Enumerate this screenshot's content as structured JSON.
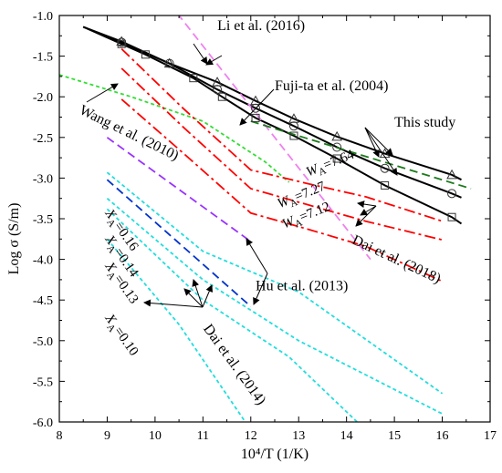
{
  "chart_data": {
    "type": "line",
    "xlabel": "10⁴/T (1/K)",
    "ylabel": "Log σ (S/m)",
    "xlim": [
      8,
      17
    ],
    "ylim": [
      -6.0,
      -1.0
    ],
    "xticks": [
      8,
      9,
      10,
      11,
      12,
      13,
      14,
      15,
      16,
      17
    ],
    "yticks": [
      -1.0,
      -1.5,
      -2.0,
      -2.5,
      -3.0,
      -3.5,
      -4.0,
      -4.5,
      -5.0,
      -5.5,
      -6.0
    ],
    "ytick_labels": [
      "-1.0",
      "-1.5",
      "-2.0",
      "-2.5",
      "-3.0",
      "-3.5",
      "-4.0",
      "-4.5",
      "-5.0",
      "-5.5",
      "-6.0"
    ],
    "grid": false,
    "series": [
      {
        "name": "This study",
        "color": "#000000",
        "style": "solid",
        "marker": "triangle",
        "x": [
          8.5,
          9.3,
          10.3,
          11.3,
          12.1,
          12.9,
          13.8,
          14.8,
          16.2,
          16.4
        ],
        "y": [
          -1.14,
          -1.32,
          -1.59,
          -1.82,
          -2.05,
          -2.27,
          -2.49,
          -2.7,
          -2.96,
          -3.02
        ]
      },
      {
        "name": "This study",
        "color": "#000000",
        "style": "solid",
        "marker": "circle",
        "x": [
          8.5,
          9.3,
          10.3,
          11.3,
          12.1,
          12.9,
          13.8,
          14.8,
          16.2,
          16.4
        ],
        "y": [
          -1.14,
          -1.33,
          -1.59,
          -1.91,
          -2.14,
          -2.36,
          -2.62,
          -2.88,
          -3.19,
          -3.24
        ]
      },
      {
        "name": "This study",
        "color": "#000000",
        "style": "solid",
        "marker": "square",
        "x": [
          8.5,
          9.3,
          9.8,
          10.8,
          11.4,
          12.1,
          12.9,
          13.8,
          14.8,
          16.2,
          16.4
        ],
        "y": [
          -1.14,
          -1.35,
          -1.48,
          -1.77,
          -2.0,
          -2.26,
          -2.48,
          -2.76,
          -3.09,
          -3.48,
          -3.56
        ]
      },
      {
        "name": "Li et al. (2016)",
        "color": "#ee82ee",
        "style": "dashed",
        "x": [
          10.3,
          14.5
        ],
        "y": [
          -0.85,
          -4.0
        ]
      },
      {
        "name": "Fuji-ta et al. (2004)",
        "color": "#1a7a1a",
        "style": "dashed",
        "x": [
          12.0,
          16.6
        ],
        "y": [
          -2.3,
          -3.13
        ]
      },
      {
        "name": "Wang et al. (2010)",
        "color": "#33dd33",
        "style": "dotted",
        "x": [
          8.0,
          9.5,
          11.0,
          12.3,
          12.8
        ],
        "y": [
          -1.73,
          -2.0,
          -2.3,
          -2.8,
          -3.05
        ]
      },
      {
        "name": "Dai et al. (2018)",
        "color": "#ff0000",
        "style": "dashdot",
        "x": [
          9.3,
          10.6,
          12.0,
          13.2,
          14.4,
          16.0
        ],
        "y": [
          -1.41,
          -2.15,
          -2.9,
          -3.07,
          -3.23,
          -3.53
        ]
      },
      {
        "name": "Dai et al. (2018)",
        "color": "#ff0000",
        "style": "dashdot",
        "x": [
          9.3,
          10.6,
          12.0,
          13.2,
          14.4,
          16.0
        ],
        "y": [
          -1.65,
          -2.38,
          -3.13,
          -3.33,
          -3.53,
          -3.76
        ]
      },
      {
        "name": "Dai et al. (2018)",
        "color": "#ff0000",
        "style": "dashdot",
        "x": [
          9.3,
          10.6,
          12.0,
          13.2,
          14.4,
          16.0
        ],
        "y": [
          -2.03,
          -2.7,
          -3.43,
          -3.63,
          -3.84,
          -4.27
        ]
      },
      {
        "name": "Hu et al. (2013)",
        "color": "#9933ff",
        "style": "dashed",
        "x": [
          9.0,
          12.0
        ],
        "y": [
          -2.5,
          -3.78
        ]
      },
      {
        "name": "Hu et al. (2013)",
        "color": "#0033cc",
        "style": "dashed",
        "x": [
          9.0,
          12.0
        ],
        "y": [
          -3.02,
          -4.58
        ]
      },
      {
        "name": "Dai et al. (2014)",
        "color": "#22dddd",
        "style": "dotted",
        "x": [
          9.0,
          11.0,
          13.0,
          16.0
        ],
        "y": [
          -2.93,
          -3.9,
          -4.4,
          -5.65
        ]
      },
      {
        "name": "Dai et al. (2014)",
        "color": "#22dddd",
        "style": "dotted",
        "x": [
          9.0,
          11.0,
          13.0,
          16.0
        ],
        "y": [
          -3.25,
          -4.25,
          -5.0,
          -5.9
        ]
      },
      {
        "name": "Dai et al. (2014)",
        "color": "#22dddd",
        "style": "dotted",
        "x": [
          9.0,
          11.0,
          12.8,
          14.4
        ],
        "y": [
          -3.38,
          -4.5,
          -5.2,
          -6.1
        ]
      },
      {
        "name": "Dai et al. (2014)",
        "color": "#22dddd",
        "style": "dotted",
        "x": [
          9.0,
          10.5,
          12.0
        ],
        "y": [
          -3.75,
          -4.8,
          -6.1
        ]
      }
    ],
    "annotations": [
      {
        "text": "Li et al. (2016)",
        "x": 11.3,
        "y": -1.18,
        "rotate": 0
      },
      {
        "text": "Fuji-ta et al. (2004)",
        "x": 12.5,
        "y": -1.92,
        "rotate": 0
      },
      {
        "text": "This study",
        "x": 15.0,
        "y": -2.37,
        "rotate": 0
      },
      {
        "text": "Wang et al. (2010)",
        "x": 8.4,
        "y": -2.2,
        "rotate": 26
      },
      {
        "text": "Dai et al. (2018)",
        "x": 14.1,
        "y": -3.8,
        "rotate": 25
      },
      {
        "text": "Hu et al. (2013)",
        "x": 12.1,
        "y": -4.38,
        "rotate": 0
      },
      {
        "text": "Dai et al. (2014)",
        "x": 11.0,
        "y": -4.85,
        "rotate": 54
      }
    ],
    "wa_labels": [
      {
        "sub": "A",
        "value": "=7.64",
        "x": 13.2,
        "y": -2.98
      },
      {
        "sub": "A",
        "value": "=7.27",
        "x": 12.6,
        "y": -3.37
      },
      {
        "sub": "A",
        "value": "=7.12",
        "x": 12.7,
        "y": -3.62
      }
    ],
    "xa_labels": [
      {
        "sub": "A",
        "value": "=0.16",
        "x": 8.95,
        "y": -3.43
      },
      {
        "sub": "A",
        "value": "=0.14",
        "x": 8.95,
        "y": -3.75
      },
      {
        "sub": "A",
        "value": "=0.13",
        "x": 8.95,
        "y": -4.08
      },
      {
        "sub": "A",
        "value": "=0.10",
        "x": 8.95,
        "y": -4.72
      }
    ]
  }
}
